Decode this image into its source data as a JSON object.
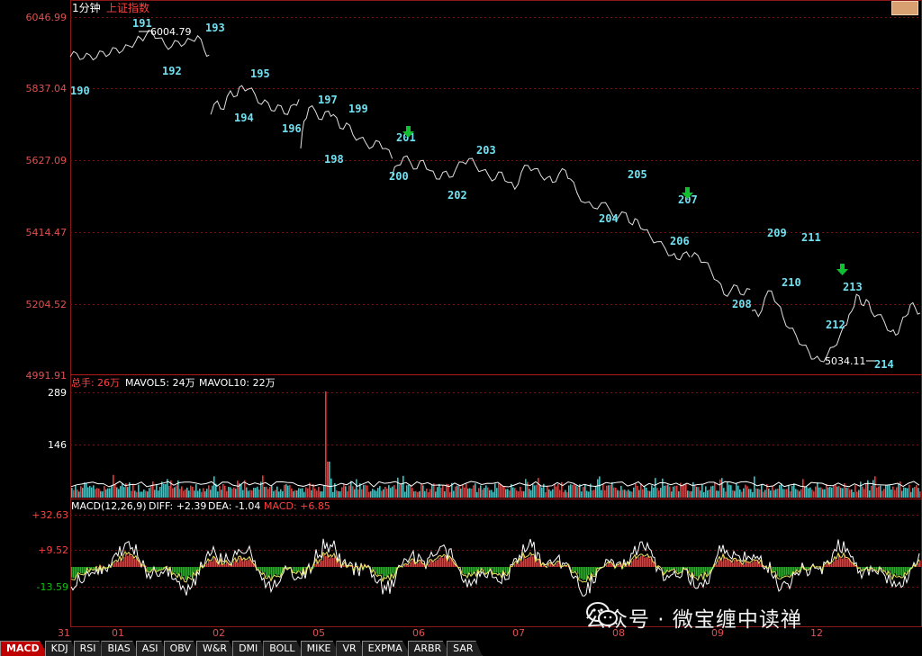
{
  "header": {
    "period": "1分钟",
    "index_name": "上证指数"
  },
  "colors": {
    "grid": "#7a1010",
    "axis_text": "#e05050",
    "price": "#dfdfdf",
    "up": "#ff4040",
    "down": "#20e0e0",
    "label": "#70e0f0",
    "macd_up": "#ff3030",
    "macd_down": "#10c010",
    "arrow": "#10c030"
  },
  "price_axis": {
    "ticks": [
      "6046.99",
      "5837.04",
      "5627.09",
      "5414.47",
      "5204.52",
      "4991.91"
    ]
  },
  "annotations": {
    "high_value": "6004.79",
    "low_value": "5034.11",
    "wave_labels": [
      "190",
      "191",
      "192",
      "193",
      "194",
      "195",
      "196",
      "197",
      "198",
      "199",
      "200",
      "201",
      "202",
      "203",
      "204",
      "205",
      "206",
      "207",
      "208",
      "209",
      "210",
      "211",
      "212",
      "213",
      "214"
    ]
  },
  "volume_panel": {
    "label_prefix": "总手:",
    "total": "26万",
    "mavol5": "MAVOL5: 24万",
    "mavol10": "MAVOL10: 22万",
    "ticks": [
      "289",
      "146"
    ]
  },
  "macd_panel": {
    "name": "MACD(12,26,9)",
    "diff": "DIFF: +2.39",
    "dea": "DEA: -1.04",
    "macd": "MACD: +6.85",
    "ticks": [
      "+32.63",
      "+9.52",
      "-13.59"
    ]
  },
  "time_axis": {
    "labels": [
      "31",
      "01",
      "02",
      "05",
      "06",
      "07",
      "08",
      "09",
      "12"
    ]
  },
  "tabs": [
    {
      "label": "MACD",
      "active": true
    },
    {
      "label": "KDJ"
    },
    {
      "label": "RSI"
    },
    {
      "label": "BIAS"
    },
    {
      "label": "ASI"
    },
    {
      "label": "OBV"
    },
    {
      "label": "W&R"
    },
    {
      "label": "DMI"
    },
    {
      "label": "BOLL"
    },
    {
      "label": "MIKE"
    },
    {
      "label": "VR"
    },
    {
      "label": "EXPMA"
    },
    {
      "label": "ARBR"
    },
    {
      "label": "SAR"
    }
  ],
  "watermark": {
    "text": "公众号 · 微宝缠中读禅",
    "icon": "wechat-icon"
  },
  "chart_data": [
    {
      "type": "line",
      "title": "上证指数 1分钟",
      "y_ticks": [
        6046.99,
        5837.04,
        5627.09,
        5414.47,
        5204.52,
        4991.91
      ],
      "ylim": [
        4991.91,
        6046.99
      ],
      "segments": [
        {
          "x": [
            0,
            8,
            16,
            24,
            32,
            40,
            48,
            56,
            64,
            72,
            80,
            86,
            92,
            100,
            108,
            116,
            124,
            132,
            140,
            148,
            156,
            164,
            170
          ],
          "y": [
            5930,
            5940,
            5925,
            5935,
            5928,
            5945,
            5938,
            5955,
            5948,
            5962,
            5975,
            5985,
            5990,
            6004.79,
            5985,
            5965,
            5960,
            5975,
            5968,
            5980,
            5992,
            5950,
            5935
          ]
        },
        {
          "x": [
            172,
            180,
            188,
            196,
            204,
            210,
            218,
            226,
            234,
            242,
            250,
            258,
            266,
            274,
            280
          ],
          "y": [
            5760,
            5800,
            5775,
            5830,
            5815,
            5845,
            5835,
            5820,
            5790,
            5795,
            5770,
            5785,
            5760,
            5790,
            5805
          ]
        },
        {
          "x": [
            282,
            286,
            292,
            300,
            308,
            316,
            322,
            330,
            338,
            346,
            354,
            362,
            370,
            378,
            386,
            394
          ],
          "y": [
            5660,
            5740,
            5780,
            5770,
            5745,
            5770,
            5760,
            5720,
            5735,
            5700,
            5690,
            5675,
            5665,
            5680,
            5660,
            5630
          ]
        },
        {
          "x": [
            394,
            400,
            408,
            416,
            424,
            432,
            440,
            448,
            456,
            464,
            472,
            480,
            488,
            496,
            504,
            512,
            520,
            528,
            536,
            544,
            552,
            560,
            568,
            576,
            584,
            590,
            598,
            606,
            612
          ],
          "y": [
            5580,
            5610,
            5635,
            5620,
            5600,
            5625,
            5595,
            5570,
            5590,
            5575,
            5600,
            5620,
            5630,
            5610,
            5595,
            5580,
            5570,
            5590,
            5560,
            5540,
            5590,
            5610,
            5600,
            5580,
            5575,
            5560,
            5585,
            5595,
            5570
          ]
        },
        {
          "x": [
            612,
            620,
            630,
            640,
            650,
            660,
            670,
            680,
            688,
            694,
            702,
            710,
            718,
            728,
            736,
            742,
            750,
            758
          ],
          "y": [
            5570,
            5530,
            5500,
            5485,
            5500,
            5480,
            5455,
            5470,
            5435,
            5450,
            5420,
            5400,
            5385,
            5365,
            5345,
            5335,
            5350,
            5340
          ]
        },
        {
          "x": [
            760,
            768,
            776,
            784,
            792,
            800,
            808,
            816,
            824,
            832
          ],
          "y": [
            5340,
            5345,
            5325,
            5300,
            5270,
            5230,
            5240,
            5255,
            5228,
            5245
          ]
        },
        {
          "x": [
            834,
            842,
            850,
            858,
            866,
            872,
            880,
            888,
            896,
            904,
            910,
            918,
            926,
            934,
            942,
            950
          ],
          "y": [
            5182,
            5165,
            5220,
            5240,
            5200,
            5165,
            5130,
            5110,
            5080,
            5060,
            5040,
            5034.11,
            5050,
            5075,
            5110,
            5140
          ]
        },
        {
          "x": [
            950,
            956,
            962,
            968,
            974,
            980,
            988,
            996,
            1004,
            1010,
            1016,
            1022,
            1028,
            1034,
            1040
          ],
          "y": [
            5140,
            5180,
            5230,
            5200,
            5215,
            5180,
            5170,
            5150,
            5120,
            5110,
            5140,
            5165,
            5200,
            5190,
            5175
          ]
        }
      ]
    },
    {
      "type": "bar",
      "title": "总手",
      "y_ticks": [
        289,
        146
      ],
      "ylim": [
        0,
        289
      ],
      "peak": 289
    },
    {
      "type": "bar",
      "title": "MACD(12,26,9)",
      "y_ticks": [
        32.63,
        9.52,
        -13.59
      ],
      "ylim": [
        -30,
        36
      ]
    }
  ]
}
